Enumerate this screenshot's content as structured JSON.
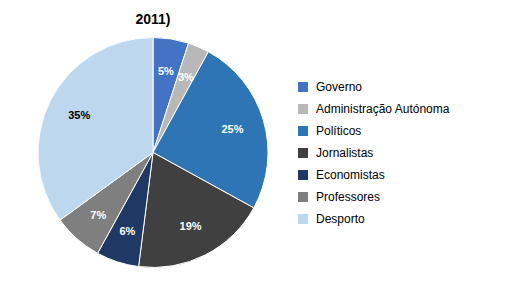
{
  "chart_data": {
    "type": "pie",
    "title": "2011)",
    "categories": [
      "Governo",
      "Administração Autónoma",
      "Políticos",
      "Jornalistas",
      "Economistas",
      "Professores",
      "Desporto"
    ],
    "values": [
      5,
      3,
      25,
      19,
      6,
      7,
      35
    ],
    "value_labels": [
      "5%",
      "3%",
      "25%",
      "19%",
      "6%",
      "7%",
      "35%"
    ],
    "colors": [
      "#4472C4",
      "#B8B8B8",
      "#2E75B6",
      "#404040",
      "#1F3864",
      "#7F7F7F",
      "#BDD7EE"
    ],
    "data_labels": true,
    "legend": "right"
  }
}
